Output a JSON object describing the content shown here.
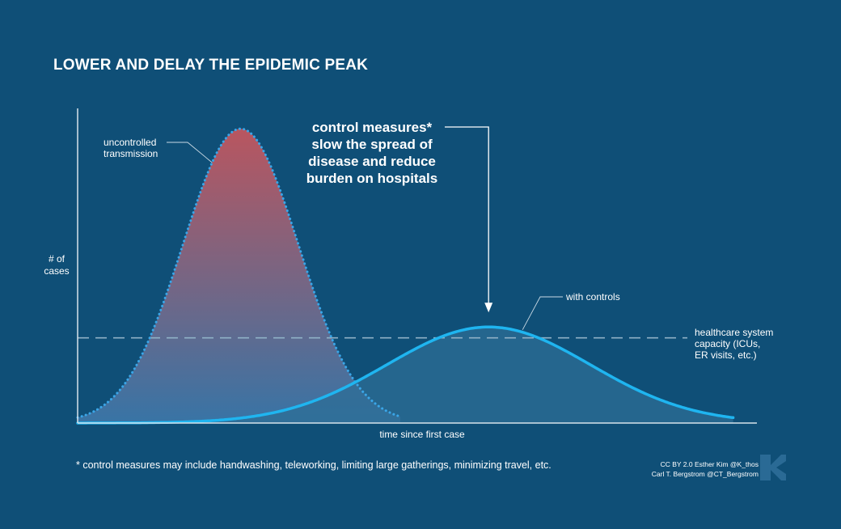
{
  "title": "LOWER AND DELAY THE EPIDEMIC PEAK",
  "footnote": "* control measures may include handwashing, teleworking, limiting large gatherings, minimizing travel, etc.",
  "credits": {
    "line1": "CC BY 2.0  Esther Kim  @K_thos",
    "line2": "Carl T. Bergstrom  @CT_Bergstrom"
  },
  "logo_icon": "k-logo-icon",
  "colors": {
    "background": "#0f4f77",
    "uncontrolled_line": "#3aa6e8",
    "controlled_line": "#1fb5f0",
    "capacity_line": "#8fb0c6",
    "uncontrolled_fill_top": "#c2565e",
    "uncontrolled_fill_bottom": "#3a76a8",
    "controlled_fill": "#2d6d96"
  },
  "chart_data": {
    "type": "area",
    "xlabel": "time since first case",
    "ylabel": [
      "# of",
      "cases"
    ],
    "xlim": [
      0,
      100
    ],
    "ylim": [
      0,
      100
    ],
    "grid": false,
    "series": [
      {
        "key": "uncontrolled",
        "label": [
          "uncontrolled",
          "transmission"
        ],
        "peak_x": 24,
        "peak_y": 95,
        "width": 8.5,
        "line_style": "dotted"
      },
      {
        "key": "controlled",
        "label": [
          "with controls"
        ],
        "peak_x": 60.5,
        "peak_y": 31,
        "width": 15,
        "line_style": "solid"
      }
    ],
    "capacity": {
      "y": 27.5,
      "label": [
        "healthcare system",
        "capacity (ICUs,",
        "ER visits, etc.)"
      ]
    },
    "annotation": {
      "lines": [
        "control measures*",
        "slow the spread of",
        "disease and reduce",
        "burden on hospitals"
      ],
      "points_to_series": "controlled"
    }
  }
}
